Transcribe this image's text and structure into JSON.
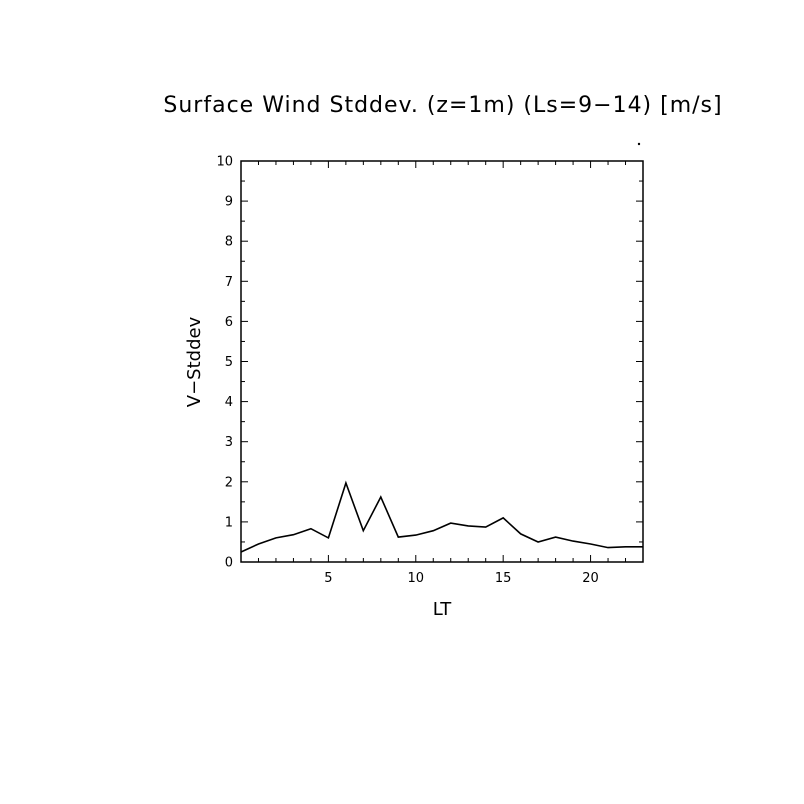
{
  "chart_data": {
    "type": "line",
    "title": "Surface Wind Stddev. (z=1m) (Ls=9−14) [m/s]",
    "xlabel": "LT",
    "ylabel": "V−Stddev",
    "xlim": [
      0,
      23
    ],
    "ylim": [
      0,
      10
    ],
    "x_ticks": [
      5,
      10,
      15,
      20
    ],
    "y_ticks": [
      0,
      1,
      2,
      3,
      4,
      5,
      6,
      7,
      8,
      9,
      10
    ],
    "grid": false,
    "legend": "none",
    "line_color": "#000000",
    "series": [
      {
        "x": [
          0,
          1,
          2,
          3,
          4,
          5,
          6,
          7,
          8,
          9,
          10,
          11,
          12,
          13,
          14,
          15,
          16,
          17,
          18,
          19,
          20,
          21,
          22,
          23
        ],
        "values": [
          0.25,
          0.45,
          0.6,
          0.68,
          0.83,
          0.6,
          1.97,
          0.78,
          1.62,
          0.62,
          0.67,
          0.78,
          0.97,
          0.9,
          0.87,
          1.1,
          0.7,
          0.5,
          0.62,
          0.52,
          0.45,
          0.36,
          0.38,
          0.38
        ]
      }
    ]
  }
}
